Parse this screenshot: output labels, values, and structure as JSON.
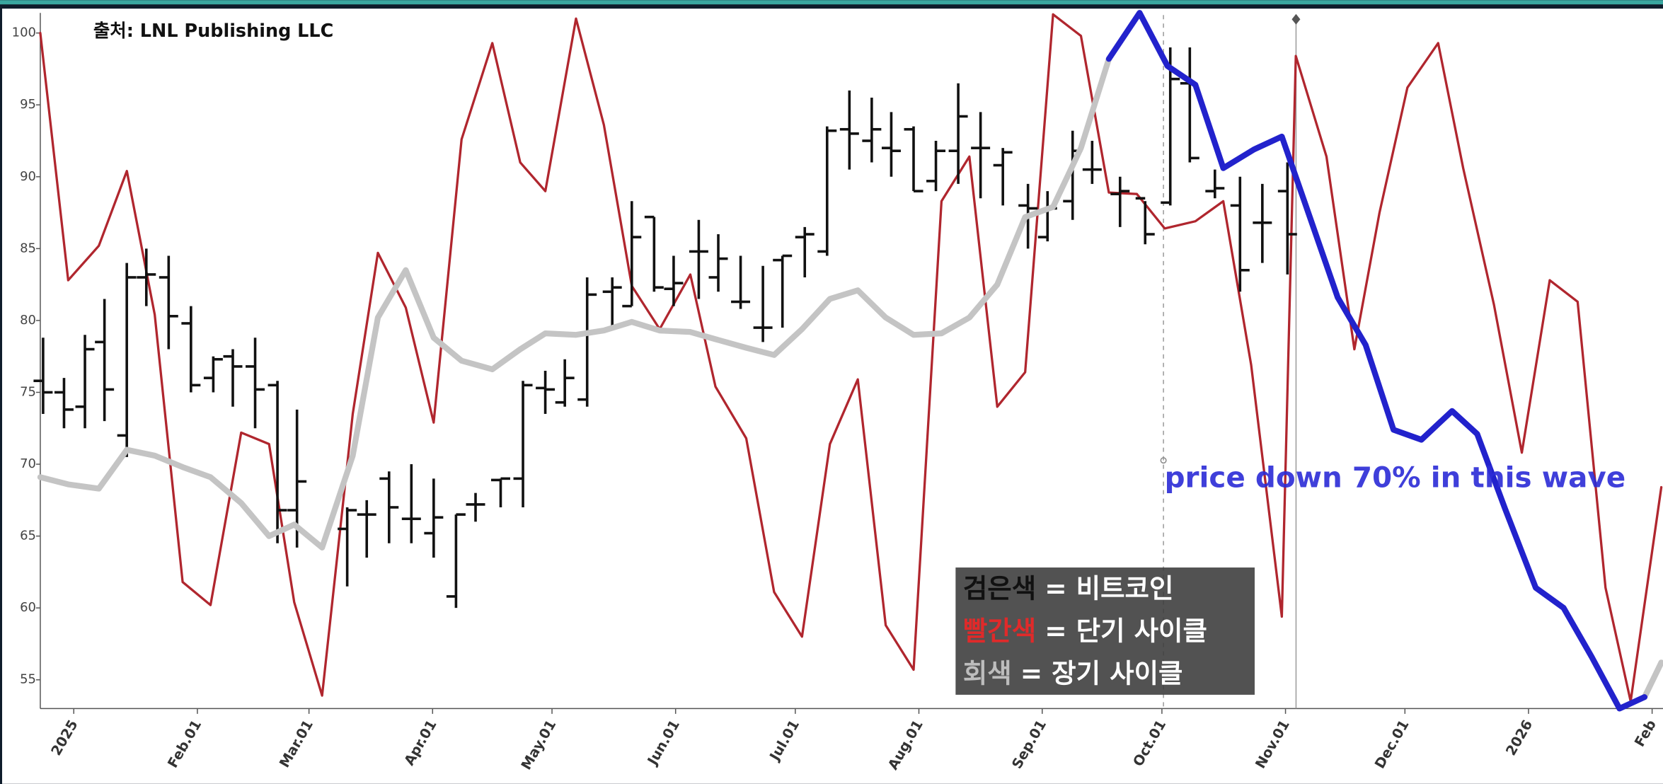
{
  "chart_data": {
    "type": "ohlc",
    "source": "출처: LNL Publishing LLC",
    "annotation": {
      "text": "price down 70% in this wave",
      "color": "#2b2bd6"
    },
    "legend_entries": [
      {
        "key": "검은색",
        "text": "= 비트코인",
        "color": "#111111"
      },
      {
        "key": "빨간색",
        "text": "= 단기 사이클",
        "color": "#e02a2a"
      },
      {
        "key": "회색",
        "text": "= 장기 사이클",
        "color": "#bdbdbd"
      }
    ],
    "xlim": [
      -1.2,
      56.96
    ],
    "xticks": [
      {
        "value": 0,
        "label": "2025",
        "color": "#8b1a1a"
      },
      {
        "value": 4.43,
        "label": "Feb.01"
      },
      {
        "value": 8.43,
        "label": "Mar.01"
      },
      {
        "value": 12.86,
        "label": "Apr.01"
      },
      {
        "value": 17.14,
        "label": "May.01"
      },
      {
        "value": 21.57,
        "label": "Jun.01"
      },
      {
        "value": 25.86,
        "label": "Jul.01"
      },
      {
        "value": 30.29,
        "label": "Aug.01"
      },
      {
        "value": 34.71,
        "label": "Sep.01"
      },
      {
        "value": 39,
        "label": "Oct.01"
      },
      {
        "value": 43.43,
        "label": "Nov.01"
      },
      {
        "value": 47.71,
        "label": "Dec.01"
      },
      {
        "value": 52.14,
        "label": "2026",
        "color": "#8b1a1a"
      },
      {
        "value": 56.57,
        "label": "Feb"
      }
    ],
    "ylim": [
      53,
      101.4
    ],
    "yticks": [
      55,
      60,
      65,
      70,
      75,
      80,
      85,
      90,
      95,
      100
    ],
    "bars": {
      "color": "#111111",
      "x": [
        -1.1,
        -0.35,
        0.4,
        1.1,
        1.9,
        2.6,
        3.4,
        4.2,
        5.0,
        5.7,
        6.5,
        7.3,
        8.0,
        9.8,
        10.5,
        11.3,
        12.1,
        12.9,
        13.7,
        14.4,
        15.3,
        16.1,
        16.9,
        17.6,
        18.4,
        19.3,
        20.0,
        20.8,
        21.5,
        22.4,
        23.1,
        23.9,
        24.7,
        25.4,
        26.2,
        27.0,
        27.8,
        28.6,
        29.3,
        30.1,
        30.9,
        31.7,
        32.5,
        33.3,
        34.2,
        34.9,
        35.8,
        36.5,
        37.5,
        38.4,
        39.3,
        40.0,
        40.9,
        41.8,
        42.6,
        43.5
      ],
      "open": [
        75.8,
        75,
        74,
        78.5,
        72,
        83,
        83,
        79.8,
        76,
        77.5,
        76.8,
        75.5,
        66.8,
        65.5,
        66.5,
        69,
        66.2,
        65.2,
        60.8,
        67.2,
        68.9,
        69,
        75.3,
        74.3,
        74.5,
        82,
        81,
        87.2,
        82.2,
        84.8,
        83,
        81.3,
        79.5,
        84.2,
        85.8,
        84.8,
        93.3,
        92.5,
        92,
        93.3,
        89.7,
        91.8,
        92,
        90.8,
        88,
        85.8,
        88.3,
        90.5,
        88.8,
        88.5,
        88.2,
        96.5,
        89,
        88,
        86.8,
        89
      ],
      "high": [
        78.8,
        76,
        79,
        81.5,
        84,
        85,
        84.5,
        81,
        77.5,
        78,
        78.8,
        75.8,
        73.8,
        67,
        67.5,
        69.5,
        70,
        69,
        66.5,
        68,
        69,
        75.8,
        76.5,
        77.3,
        83,
        83,
        88.3,
        87.2,
        84.5,
        87,
        86,
        84.5,
        83.8,
        84.5,
        86.5,
        93.5,
        96,
        95.5,
        94.5,
        93.5,
        92.5,
        96.5,
        94.5,
        92,
        89.5,
        89,
        93.2,
        92.5,
        90,
        88.3,
        99,
        99,
        90.5,
        90,
        89.5,
        91
      ],
      "low": [
        73.5,
        72.5,
        72.5,
        73,
        70.5,
        81,
        78,
        75,
        75,
        74,
        72.5,
        64.5,
        64.2,
        61.5,
        63.5,
        64.5,
        64.5,
        63.5,
        60,
        66,
        67,
        67,
        73.5,
        74,
        74,
        79.5,
        81,
        82,
        81,
        81.5,
        82,
        80.8,
        78.5,
        79.5,
        83,
        84.5,
        90.5,
        91,
        90,
        89,
        89,
        89.5,
        88.5,
        88,
        85,
        85.5,
        87,
        89.5,
        86.5,
        85.3,
        88,
        91,
        88.5,
        82,
        84,
        83.2
      ],
      "close": [
        75,
        73.8,
        78,
        75.2,
        83,
        83.2,
        80.3,
        75.5,
        77.3,
        76.8,
        75.2,
        66.8,
        68.8,
        66.8,
        66.5,
        67,
        66.2,
        66.3,
        66.5,
        67.2,
        69,
        75.5,
        75.2,
        76,
        81.8,
        82.3,
        85.8,
        82.3,
        82.6,
        84.8,
        84.3,
        81.3,
        79.5,
        84.5,
        86,
        93.2,
        93,
        93.3,
        91.8,
        89,
        91.8,
        94.2,
        92,
        91.7,
        87.8,
        87.8,
        91.8,
        90.5,
        89,
        86,
        96.8,
        91.3,
        89.2,
        83.5,
        86.8,
        86
      ]
    },
    "series": [
      {
        "color": "#b0262e",
        "width": 2.2,
        "x": [
          -1.2,
          -0.2,
          0.9,
          1.9,
          2.9,
          3.9,
          4.9,
          6.0,
          7.0,
          7.9,
          8.9,
          10.0,
          10.9,
          11.9,
          12.9,
          13.9,
          15.0,
          16.0,
          16.9,
          18.0,
          19.0,
          20.0,
          21.0,
          22.1,
          23.0,
          24.1,
          25.1,
          26.1,
          27.1,
          28.1,
          29.1,
          30.1,
          31.1,
          32.1,
          33.1,
          34.1,
          35.1,
          36.1,
          37.1,
          38.1,
          39.1,
          40.2,
          41.2,
          42.2,
          43.3,
          43.8,
          44.9,
          45.9,
          46.8,
          47.8,
          48.9,
          49.8,
          50.9,
          51.9,
          52.9,
          53.9,
          54.9,
          55.8,
          56.9
        ],
        "values": [
          100,
          82.8,
          85.2,
          90.4,
          80.4,
          61.8,
          60.2,
          72.2,
          71.4,
          60.4,
          53.9,
          73.5,
          84.7,
          80.9,
          72.9,
          92.6,
          99.3,
          91,
          89,
          101,
          93.6,
          82.4,
          79.4,
          83.2,
          75.4,
          71.8,
          61.1,
          58,
          71.4,
          75.9,
          58.8,
          55.7,
          88.3,
          91.4,
          74,
          76.4,
          101.3,
          99.8,
          88.9,
          88.8,
          86.4,
          86.9,
          88.3,
          76.9,
          59.4,
          98.4,
          91.4,
          78,
          87.5,
          96.2,
          99.3,
          90.6,
          81.1,
          70.8,
          82.8,
          81.3,
          61.4,
          53.5,
          68.4
        ]
      },
      {
        "color": "#c4c4c4",
        "width": 5.5,
        "x": [
          -1.2,
          -0.2,
          0.9,
          1.9,
          2.9,
          3.9,
          4.9,
          6.0,
          7.0,
          7.9,
          8.9,
          10.0,
          10.9,
          11.9,
          12.9,
          13.9,
          15.0,
          16.0,
          16.9,
          18.0,
          19.0,
          20.0,
          21.0,
          22.1,
          23.0,
          24.1,
          25.1,
          26.1,
          27.1,
          28.1,
          29.1,
          30.1,
          31.1,
          32.1,
          33.1,
          34.1,
          35.1,
          36.1,
          37.1,
          55.8,
          56.3,
          56.9
        ],
        "values": [
          69.1,
          68.6,
          68.3,
          71,
          70.6,
          69.8,
          69.1,
          67.3,
          65,
          65.8,
          64.2,
          70.6,
          80.2,
          83.5,
          78.8,
          77.2,
          76.6,
          78,
          79.1,
          79,
          79.3,
          79.9,
          79.3,
          79.2,
          78.7,
          78.1,
          77.6,
          79.4,
          81.5,
          82.1,
          80.2,
          79,
          79.1,
          80.2,
          82.5,
          87.2,
          87.9,
          92,
          98.2,
          null,
          53.8,
          56.2
        ]
      },
      {
        "color": "#2222cc",
        "width": 5.5,
        "x": [
          37.1,
          38.2,
          39.2,
          40.2,
          41.2,
          42.3,
          43.3,
          44.3,
          45.3,
          46.3,
          47.3,
          48.3,
          49.4,
          50.3,
          51.3,
          52.4,
          53.4,
          54.4,
          55.4,
          56.3
        ],
        "values": [
          98.2,
          101.4,
          97.7,
          96.4,
          90.6,
          91.9,
          92.8,
          87.2,
          81.6,
          78.3,
          72.4,
          71.7,
          73.7,
          72.1,
          66.9,
          61.4,
          60,
          56.6,
          53,
          53.8
        ]
      }
    ]
  }
}
